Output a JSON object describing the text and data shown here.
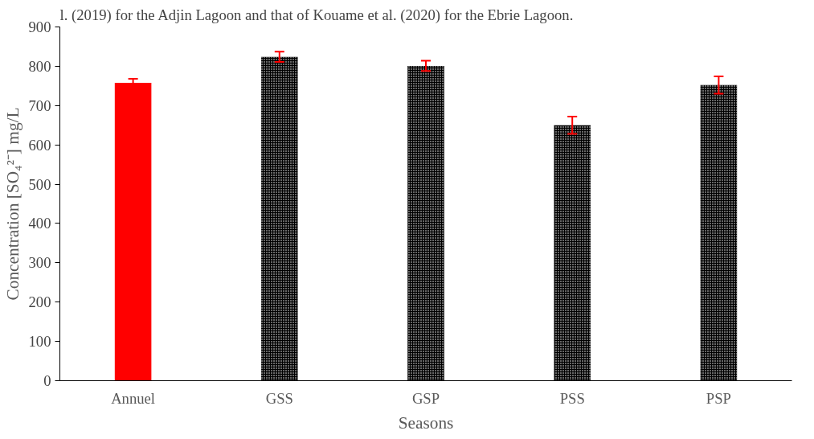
{
  "chart_data": {
    "type": "bar",
    "xlabel": "Seasons",
    "ylabel": "Concentration [SO₄²⁻] mg/L",
    "categories": [
      "Annuel",
      "GSS",
      "GSP",
      "PSS",
      "PSP"
    ],
    "values": [
      758,
      824,
      801,
      650,
      752
    ],
    "errors": [
      10,
      13,
      13,
      22,
      22
    ],
    "colors": [
      "#ff0000",
      "#000000",
      "#000000",
      "#000000",
      "#000000"
    ],
    "ylim": [
      0,
      900
    ],
    "yticks": [
      0,
      100,
      200,
      300,
      400,
      500,
      600,
      700,
      800,
      900
    ],
    "grid": false,
    "annotations": [
      "l. (2019) for the Adjin Lagoon and that of Kouame et al. (2020) for the Ebrie Lagoon."
    ]
  }
}
